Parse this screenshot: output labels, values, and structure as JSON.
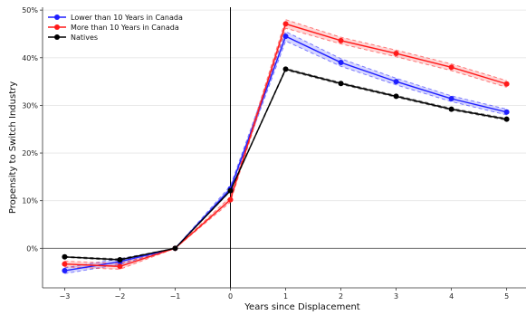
{
  "chart_data": {
    "type": "line",
    "xlabel": "Years since Displacement",
    "ylabel": "Propensity to Switch Industry",
    "x": [
      -3,
      -2,
      -1,
      0,
      1,
      2,
      3,
      4,
      5
    ],
    "x_tick_labels": [
      "−3",
      "−2",
      "−1",
      "0",
      "1",
      "2",
      "3",
      "4",
      "5"
    ],
    "xlim": [
      -3.4,
      5.35
    ],
    "y_ticks": [
      0,
      10,
      20,
      30,
      40,
      50
    ],
    "y_tick_labels": [
      "0%",
      "10%",
      "20%",
      "30%",
      "40%",
      "50%"
    ],
    "ylim": [
      -8.3,
      50.6
    ],
    "grid": "horizontal",
    "reference_lines": {
      "x": 0,
      "y": 0
    },
    "legend_position": "top-left",
    "series": [
      {
        "name": "Lower than 10 Years in Canada",
        "color": "#1f1fff",
        "values": [
          -4.7,
          -2.8,
          0,
          12.5,
          44.5,
          39.0,
          35.0,
          31.4,
          28.6
        ],
        "ci_lower": [
          -5.3,
          -3.4,
          0,
          12.0,
          43.5,
          38.2,
          34.3,
          30.8,
          28.0
        ],
        "ci_upper": [
          -4.1,
          -2.2,
          0,
          13.1,
          45.5,
          39.8,
          35.7,
          32.0,
          29.2
        ]
      },
      {
        "name": "More than 10 Years in Canada",
        "color": "#ff1a1a",
        "values": [
          -3.3,
          -3.8,
          0,
          10.2,
          47.1,
          43.6,
          40.9,
          38.0,
          34.5
        ],
        "ci_lower": [
          -3.9,
          -4.4,
          0,
          9.7,
          46.2,
          42.9,
          40.2,
          37.3,
          33.8
        ],
        "ci_upper": [
          -2.7,
          -3.2,
          0,
          10.8,
          48.0,
          44.3,
          41.6,
          38.7,
          35.2
        ]
      },
      {
        "name": "Natives",
        "color": "#000000",
        "values": [
          -1.8,
          -2.4,
          0,
          12.1,
          37.6,
          34.6,
          31.9,
          29.2,
          27.1
        ],
        "ci_lower": [
          -1.9,
          -2.6,
          0,
          12.0,
          37.4,
          34.4,
          31.7,
          29.0,
          26.9
        ],
        "ci_upper": [
          -1.7,
          -2.2,
          0,
          12.2,
          37.8,
          34.8,
          32.1,
          29.4,
          27.3
        ]
      }
    ]
  }
}
